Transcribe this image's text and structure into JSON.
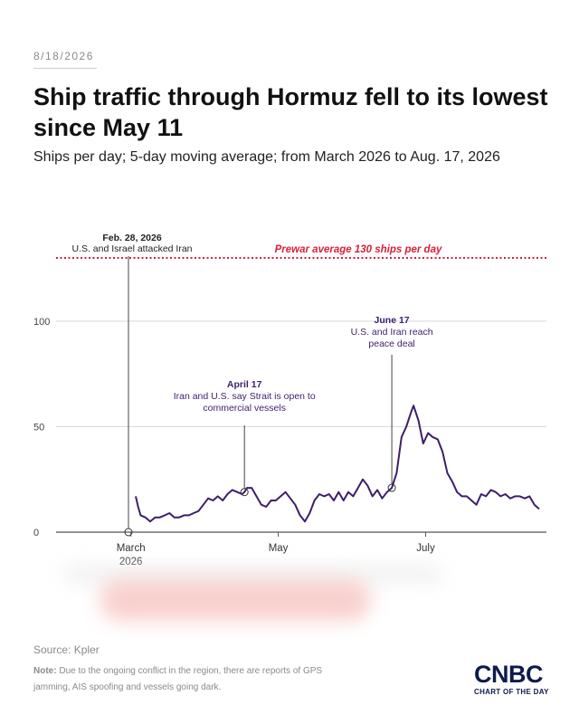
{
  "header": {
    "date": "8/18/2026",
    "title": "Ship traffic through Hormuz fell to its lowest since May 11",
    "subtitle": "Ships per day; 5-day moving average; from March 2026 to Aug. 17, 2026"
  },
  "footer": {
    "source": "Source: Kpler",
    "note_label": "Note:",
    "note_text": "Due to the ongoing conflict in the region, there are reports of GPS jamming, AIS spoofing and vessels going dark.",
    "logo": "CNBC",
    "logo_sub": "CHART OF THE DAY"
  },
  "colors": {
    "line": "#3d1f6b",
    "prewar": "#d6213b",
    "grid": "#d9d9d9",
    "annotation": "#3d1f6b"
  },
  "chart_data": {
    "type": "line",
    "title": "Ship traffic through Hormuz fell to its lowest since May 11",
    "xlabel": "",
    "ylabel": "",
    "ylim": [
      0,
      130
    ],
    "x_range": [
      "2026-02-28",
      "2026-08-17"
    ],
    "y_ticks": [
      0,
      50,
      100
    ],
    "x_ticks": [
      {
        "date": "2026-03-01",
        "label": "March",
        "label2": "2026"
      },
      {
        "date": "2026-05-01",
        "label": "May"
      },
      {
        "date": "2026-07-01",
        "label": "July"
      }
    ],
    "grid": true,
    "reference_line": {
      "value": 130,
      "label": "Prewar average 130 ships per day"
    },
    "series": [
      {
        "points": [
          [
            "2026-03-03",
            17
          ],
          [
            "2026-03-04",
            12
          ],
          [
            "2026-03-05",
            8
          ],
          [
            "2026-03-07",
            7
          ],
          [
            "2026-03-09",
            5
          ],
          [
            "2026-03-11",
            7
          ],
          [
            "2026-03-13",
            7
          ],
          [
            "2026-03-15",
            8
          ],
          [
            "2026-03-17",
            9
          ],
          [
            "2026-03-19",
            7
          ],
          [
            "2026-03-21",
            7
          ],
          [
            "2026-03-23",
            8
          ],
          [
            "2026-03-25",
            8
          ],
          [
            "2026-03-27",
            9
          ],
          [
            "2026-03-29",
            10
          ],
          [
            "2026-03-31",
            13
          ],
          [
            "2026-04-02",
            16
          ],
          [
            "2026-04-04",
            15
          ],
          [
            "2026-04-06",
            17
          ],
          [
            "2026-04-08",
            15
          ],
          [
            "2026-04-10",
            18
          ],
          [
            "2026-04-12",
            20
          ],
          [
            "2026-04-14",
            19
          ],
          [
            "2026-04-16",
            18
          ],
          [
            "2026-04-17",
            19
          ],
          [
            "2026-04-18",
            21
          ],
          [
            "2026-04-20",
            21
          ],
          [
            "2026-04-22",
            17
          ],
          [
            "2026-04-24",
            13
          ],
          [
            "2026-04-26",
            12
          ],
          [
            "2026-04-28",
            15
          ],
          [
            "2026-04-30",
            15
          ],
          [
            "2026-05-02",
            17
          ],
          [
            "2026-05-04",
            19
          ],
          [
            "2026-05-06",
            16
          ],
          [
            "2026-05-08",
            13
          ],
          [
            "2026-05-10",
            8
          ],
          [
            "2026-05-12",
            5
          ],
          [
            "2026-05-14",
            9
          ],
          [
            "2026-05-16",
            15
          ],
          [
            "2026-05-18",
            18
          ],
          [
            "2026-05-20",
            17
          ],
          [
            "2026-05-22",
            18
          ],
          [
            "2026-05-24",
            15
          ],
          [
            "2026-05-26",
            19
          ],
          [
            "2026-05-28",
            15
          ],
          [
            "2026-05-30",
            19
          ],
          [
            "2026-06-01",
            17
          ],
          [
            "2026-06-03",
            21
          ],
          [
            "2026-06-05",
            25
          ],
          [
            "2026-06-07",
            22
          ],
          [
            "2026-06-09",
            17
          ],
          [
            "2026-06-11",
            20
          ],
          [
            "2026-06-13",
            16
          ],
          [
            "2026-06-15",
            19
          ],
          [
            "2026-06-17",
            21
          ],
          [
            "2026-06-19",
            28
          ],
          [
            "2026-06-21",
            45
          ],
          [
            "2026-06-23",
            50
          ],
          [
            "2026-06-25",
            57
          ],
          [
            "2026-06-26",
            60
          ],
          [
            "2026-06-28",
            53
          ],
          [
            "2026-06-30",
            42
          ],
          [
            "2026-07-02",
            47
          ],
          [
            "2026-07-04",
            45
          ],
          [
            "2026-07-06",
            44
          ],
          [
            "2026-07-08",
            38
          ],
          [
            "2026-07-10",
            28
          ],
          [
            "2026-07-12",
            24
          ],
          [
            "2026-07-14",
            19
          ],
          [
            "2026-07-16",
            17
          ],
          [
            "2026-07-18",
            17
          ],
          [
            "2026-07-20",
            15
          ],
          [
            "2026-07-22",
            13
          ],
          [
            "2026-07-24",
            18
          ],
          [
            "2026-07-26",
            17
          ],
          [
            "2026-07-28",
            20
          ],
          [
            "2026-07-30",
            19
          ],
          [
            "2026-08-01",
            17
          ],
          [
            "2026-08-03",
            18
          ],
          [
            "2026-08-05",
            16
          ],
          [
            "2026-08-07",
            17
          ],
          [
            "2026-08-09",
            17
          ],
          [
            "2026-08-11",
            16
          ],
          [
            "2026-08-13",
            17
          ],
          [
            "2026-08-15",
            13
          ],
          [
            "2026-08-17",
            11
          ]
        ]
      }
    ],
    "annotations": [
      {
        "date": "2026-02-28",
        "value": 0,
        "title": "Feb. 28, 2026",
        "text": [
          "U.S. and Israel attacked Iran"
        ],
        "color": "dark"
      },
      {
        "date": "2026-04-17",
        "value": 19,
        "title": "April 17",
        "text": [
          "Iran and U.S. say Strait is open to",
          "commercial vessels"
        ],
        "color": "purple"
      },
      {
        "date": "2026-06-17",
        "value": 21,
        "title": "June 17",
        "text": [
          "U.S. and Iran reach",
          "peace deal"
        ],
        "color": "purple"
      }
    ]
  }
}
